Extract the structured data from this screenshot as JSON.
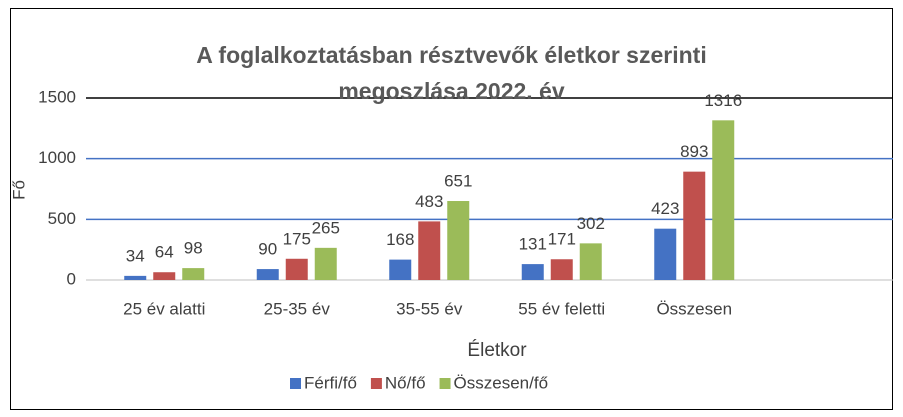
{
  "chart_data": {
    "type": "bar",
    "title": "A foglalkoztatásban résztvevők életkor szerinti megoszlása 2022. év",
    "x_label": "Életkor",
    "y_label": "Fő",
    "categories": [
      "25 év alatti",
      "25-35 év",
      "35-55 év",
      "55 év feletti",
      "Összesen",
      null
    ],
    "series": [
      {
        "name": "Férfi/fő",
        "color": "#4472c4",
        "values": [
          34,
          90,
          168,
          131,
          423,
          null
        ]
      },
      {
        "name": "Nő/fő",
        "color": "#c0504d",
        "values": [
          64,
          175,
          483,
          171,
          893,
          null
        ]
      },
      {
        "name": "Összesen/fő",
        "color": "#9bbb59",
        "values": [
          98,
          265,
          651,
          302,
          1316,
          null
        ]
      }
    ],
    "ylim": [
      0,
      1500
    ],
    "yticks": [
      0,
      500,
      1000,
      1500
    ],
    "grid": true,
    "legend": "bottom"
  }
}
